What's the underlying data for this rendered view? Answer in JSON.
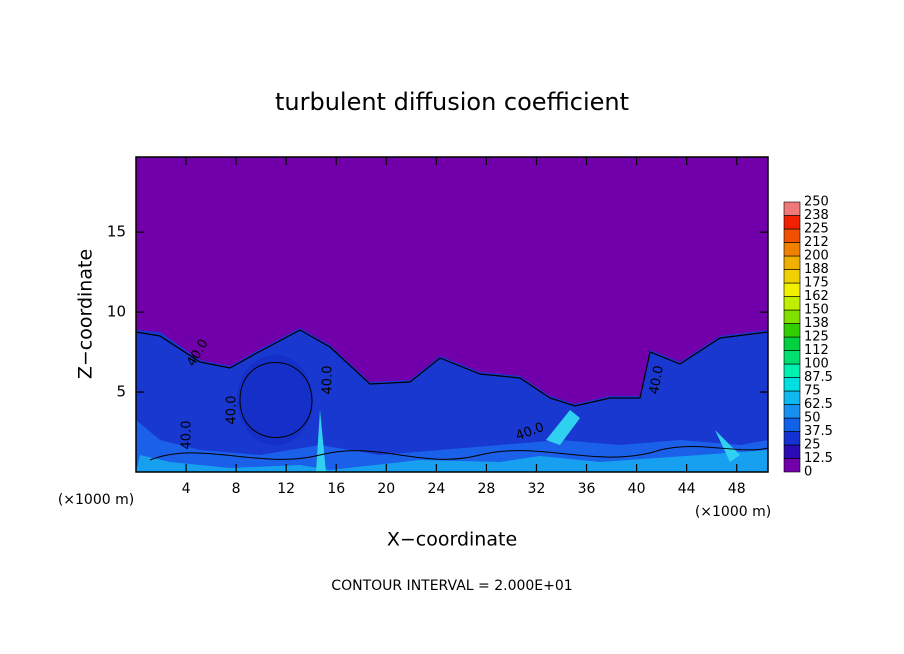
{
  "chart_data": {
    "type": "field",
    "title": "turbulent diffusion coefficient",
    "xlabel": "X−coordinate",
    "ylabel": "Z−coordinate",
    "x_unit_labels": [
      "(×1000 m)",
      "(×1000 m)"
    ],
    "note": "CONTOUR INTERVAL = 2.000E+01",
    "xlim": [
      0,
      50.5
    ],
    "xticks": [
      4,
      8,
      12,
      16,
      20,
      24,
      28,
      32,
      36,
      40,
      44,
      48
    ],
    "ylim": [
      0,
      19.7
    ],
    "yticks": [
      5,
      10,
      15
    ],
    "contour_labels": [
      "40.0",
      "40.0",
      "40.0",
      "40.0",
      "40.0",
      "40.0"
    ],
    "colorbar": {
      "levels": [
        0,
        12.5,
        25,
        37.5,
        50,
        62.5,
        75,
        87.5,
        100,
        112,
        125,
        138,
        150,
        162,
        175,
        188,
        200,
        212,
        225,
        238,
        250
      ],
      "colors": [
        "#7200aa",
        "#2a0cb4",
        "#1432d2",
        "#1060e8",
        "#1890f0",
        "#10b8f0",
        "#00e0e0",
        "#00f0b0",
        "#00e070",
        "#00d040",
        "#30d000",
        "#80e000",
        "#c0f000",
        "#f0f000",
        "#f0d000",
        "#f0b000",
        "#f08000",
        "#f05000",
        "#f02000",
        "#f07878"
      ]
    }
  }
}
